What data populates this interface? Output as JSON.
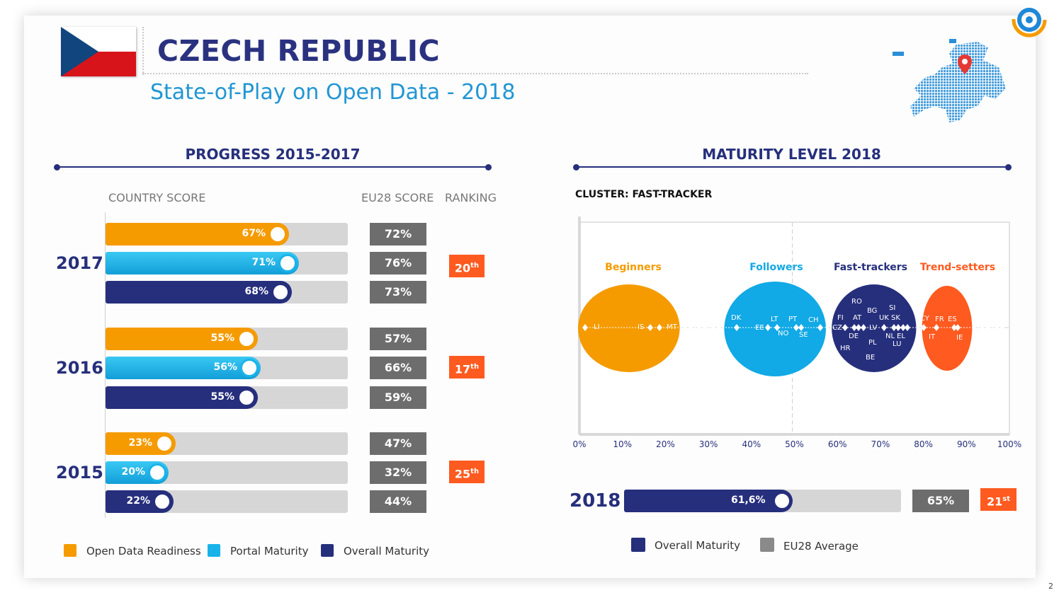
{
  "header": {
    "title": "CZECH REPUBLIC",
    "subtitle": "State-of-Play on Open Data - 2018"
  },
  "page_number": "2",
  "progress": {
    "section_title": "PROGRESS 2015-2017",
    "col_country": "COUNTRY SCORE",
    "col_eu": "EU28 SCORE",
    "col_rank": "RANKING",
    "years": [
      {
        "year": "2017",
        "rank_num": "20",
        "rank_suffix": "th",
        "bars": [
          {
            "metric": "Open Data Readiness",
            "value": 67,
            "label": "67%",
            "eu": "72%"
          },
          {
            "metric": "Portal Maturity",
            "value": 71,
            "label": "71%",
            "eu": "76%"
          },
          {
            "metric": "Overall Maturity",
            "value": 68,
            "label": "68%",
            "eu": "73%"
          }
        ]
      },
      {
        "year": "2016",
        "rank_num": "17",
        "rank_suffix": "th",
        "bars": [
          {
            "metric": "Open Data Readiness",
            "value": 55,
            "label": "55%",
            "eu": "57%"
          },
          {
            "metric": "Portal Maturity",
            "value": 56,
            "label": "56%",
            "eu": "66%"
          },
          {
            "metric": "Overall Maturity",
            "value": 55,
            "label": "55%",
            "eu": "59%"
          }
        ]
      },
      {
        "year": "2015",
        "rank_num": "25",
        "rank_suffix": "th",
        "bars": [
          {
            "metric": "Open Data Readiness",
            "value": 23,
            "label": "23%",
            "eu": "47%"
          },
          {
            "metric": "Portal Maturity",
            "value": 20,
            "label": "20%",
            "eu": "32%"
          },
          {
            "metric": "Overall Maturity",
            "value": 22,
            "label": "22%",
            "eu": "44%"
          }
        ]
      }
    ],
    "legend": [
      "Open Data Readiness",
      "Portal Maturity",
      "Overall Maturity"
    ]
  },
  "maturity": {
    "section_title": "MATURITY LEVEL 2018",
    "cluster_label": "CLUSTER: FAST-TRACKER",
    "year": "2018",
    "overall_value": 61.6,
    "overall_label": "61,6%",
    "eu_avg": "65%",
    "rank_num": "21",
    "rank_suffix": "st",
    "legend": [
      "Overall Maturity",
      "EU28 Average"
    ]
  },
  "chart_data": {
    "type": "scatter",
    "x_ticks": [
      "0%",
      "10%",
      "20%",
      "30%",
      "40%",
      "50%",
      "60%",
      "70%",
      "80%",
      "90%",
      "100%"
    ],
    "xlim": [
      0,
      100
    ],
    "groups": [
      {
        "name": "Beginners",
        "color": "#f59b00",
        "x_range": [
          0,
          23
        ]
      },
      {
        "name": "Followers",
        "color": "#11a9e6",
        "x_range": [
          34,
          57
        ]
      },
      {
        "name": "Fast-trackers",
        "color": "#262f7c",
        "x_range": [
          59,
          78
        ]
      },
      {
        "name": "Trend-setters",
        "color": "#ff5a1f",
        "x_range": [
          80,
          91
        ]
      }
    ],
    "countries": [
      "LI",
      "IS",
      "MT",
      "DK",
      "EE",
      "LT",
      "NO",
      "PT",
      "SE",
      "CH",
      "CZ",
      "FI",
      "RO",
      "AT",
      "BG",
      "DE",
      "HR",
      "BE",
      "PL",
      "LV",
      "UK",
      "SI",
      "SK",
      "NL",
      "EL",
      "LU",
      "CY",
      "IT",
      "FR",
      "ES",
      "IE"
    ]
  },
  "colors": {
    "navy": "#262f7c",
    "orange": "#f59b00",
    "blue": "#11a9e6",
    "red": "#ff5a1f",
    "grey": "#6d6d6d"
  }
}
